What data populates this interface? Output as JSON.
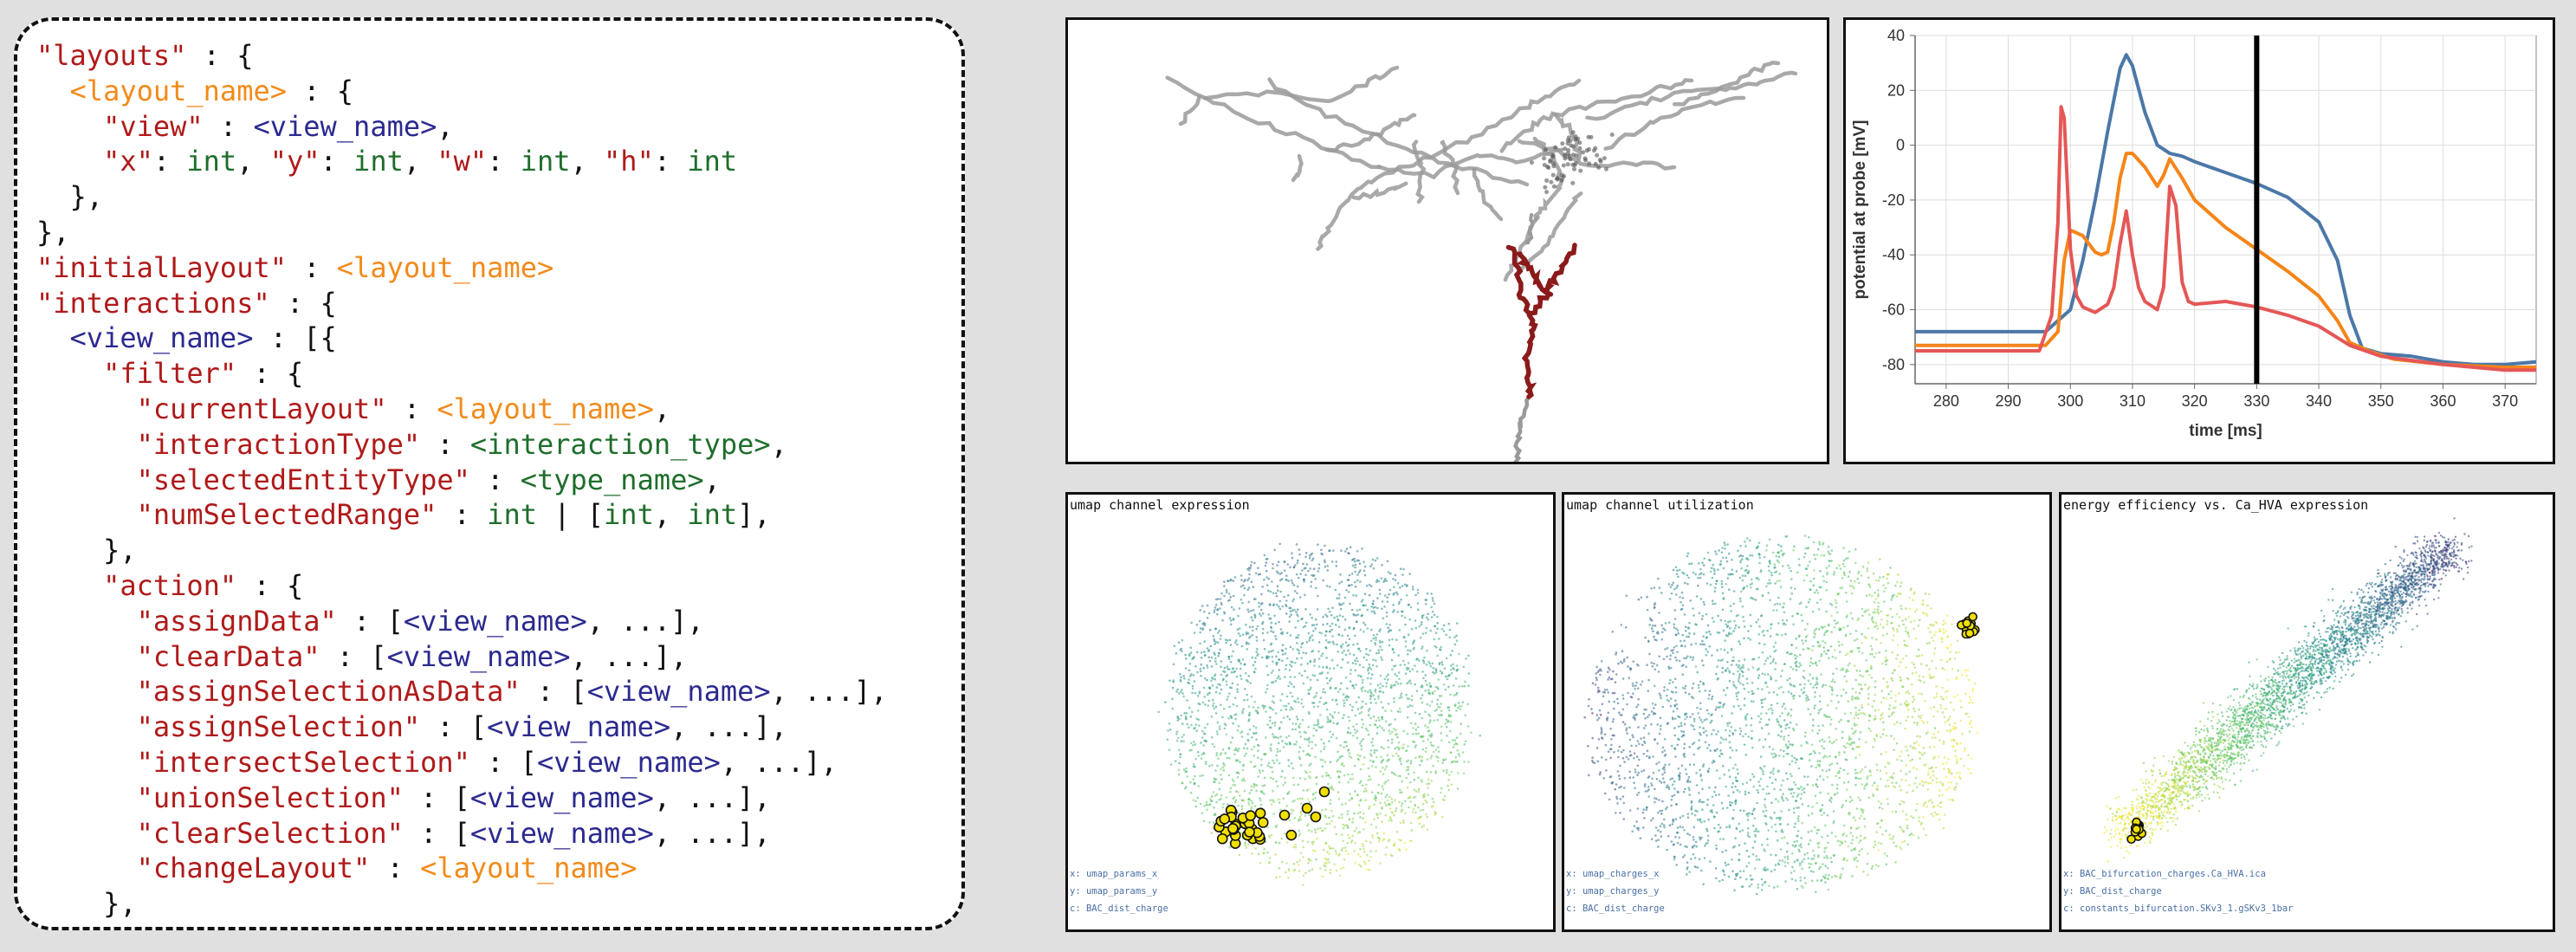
{
  "code_panel": {
    "lines": [
      [
        [
          "tok-key",
          "\"layouts\""
        ],
        [
          "tok-punct",
          " : {"
        ]
      ],
      [
        [
          "tok-punct",
          "  "
        ],
        [
          "tok-layout",
          "<layout_name>"
        ],
        [
          "tok-punct",
          " : {"
        ]
      ],
      [
        [
          "tok-punct",
          "    "
        ],
        [
          "tok-key",
          "\"view\""
        ],
        [
          "tok-punct",
          " : "
        ],
        [
          "tok-view",
          "<view_name>"
        ],
        [
          "tok-punct",
          ","
        ]
      ],
      [
        [
          "tok-punct",
          "    "
        ],
        [
          "tok-key",
          "\"x\""
        ],
        [
          "tok-punct",
          ": "
        ],
        [
          "tok-type",
          "int"
        ],
        [
          "tok-punct",
          ", "
        ],
        [
          "tok-key",
          "\"y\""
        ],
        [
          "tok-punct",
          ": "
        ],
        [
          "tok-type",
          "int"
        ],
        [
          "tok-punct",
          ", "
        ],
        [
          "tok-key",
          "\"w\""
        ],
        [
          "tok-punct",
          ": "
        ],
        [
          "tok-type",
          "int"
        ],
        [
          "tok-punct",
          ", "
        ],
        [
          "tok-key",
          "\"h\""
        ],
        [
          "tok-punct",
          ": "
        ],
        [
          "tok-type",
          "int"
        ]
      ],
      [
        [
          "tok-punct",
          "  },"
        ]
      ],
      [
        [
          "tok-punct",
          "},"
        ]
      ],
      [
        [
          "tok-key",
          "\"initialLayout\""
        ],
        [
          "tok-punct",
          " : "
        ],
        [
          "tok-layout",
          "<layout_name>"
        ]
      ],
      [
        [
          "tok-key",
          "\"interactions\""
        ],
        [
          "tok-punct",
          " : {"
        ]
      ],
      [
        [
          "tok-punct",
          "  "
        ],
        [
          "tok-view",
          "<view_name>"
        ],
        [
          "tok-punct",
          " : [{"
        ]
      ],
      [
        [
          "tok-punct",
          "    "
        ],
        [
          "tok-key",
          "\"filter\""
        ],
        [
          "tok-punct",
          " : {"
        ]
      ],
      [
        [
          "tok-punct",
          "      "
        ],
        [
          "tok-key",
          "\"currentLayout\""
        ],
        [
          "tok-punct",
          " : "
        ],
        [
          "tok-layout",
          "<layout_name>"
        ],
        [
          "tok-punct",
          ","
        ]
      ],
      [
        [
          "tok-punct",
          "      "
        ],
        [
          "tok-key",
          "\"interactionType\""
        ],
        [
          "tok-punct",
          " : "
        ],
        [
          "tok-type",
          "<interaction_type>"
        ],
        [
          "tok-punct",
          ","
        ]
      ],
      [
        [
          "tok-punct",
          "      "
        ],
        [
          "tok-key",
          "\"selectedEntityType\""
        ],
        [
          "tok-punct",
          " : "
        ],
        [
          "tok-type",
          "<type_name>"
        ],
        [
          "tok-punct",
          ","
        ]
      ],
      [
        [
          "tok-punct",
          "      "
        ],
        [
          "tok-key",
          "\"numSelectedRange\""
        ],
        [
          "tok-punct",
          " : "
        ],
        [
          "tok-type",
          "int"
        ],
        [
          "tok-punct",
          " | ["
        ],
        [
          "tok-type",
          "int"
        ],
        [
          "tok-punct",
          ", "
        ],
        [
          "tok-type",
          "int"
        ],
        [
          "tok-punct",
          "],"
        ]
      ],
      [
        [
          "tok-punct",
          "    },"
        ]
      ],
      [
        [
          "tok-punct",
          "    "
        ],
        [
          "tok-key",
          "\"action\""
        ],
        [
          "tok-punct",
          " : {"
        ]
      ],
      [
        [
          "tok-punct",
          "      "
        ],
        [
          "tok-key",
          "\"assignData\""
        ],
        [
          "tok-punct",
          " : ["
        ],
        [
          "tok-view",
          "<view_name>"
        ],
        [
          "tok-punct",
          ", ...],"
        ]
      ],
      [
        [
          "tok-punct",
          "      "
        ],
        [
          "tok-key",
          "\"clearData\""
        ],
        [
          "tok-punct",
          " : ["
        ],
        [
          "tok-view",
          "<view_name>"
        ],
        [
          "tok-punct",
          ", ...],"
        ]
      ],
      [
        [
          "tok-punct",
          "      "
        ],
        [
          "tok-key",
          "\"assignSelectionAsData\""
        ],
        [
          "tok-punct",
          " : ["
        ],
        [
          "tok-view",
          "<view_name>"
        ],
        [
          "tok-punct",
          ", ...],"
        ]
      ],
      [
        [
          "tok-punct",
          "      "
        ],
        [
          "tok-key",
          "\"assignSelection\""
        ],
        [
          "tok-punct",
          " : ["
        ],
        [
          "tok-view",
          "<view_name>"
        ],
        [
          "tok-punct",
          ", ...],"
        ]
      ],
      [
        [
          "tok-punct",
          "      "
        ],
        [
          "tok-key",
          "\"intersectSelection\""
        ],
        [
          "tok-punct",
          " : ["
        ],
        [
          "tok-view",
          "<view_name>"
        ],
        [
          "tok-punct",
          ", ...],"
        ]
      ],
      [
        [
          "tok-punct",
          "      "
        ],
        [
          "tok-key",
          "\"unionSelection\""
        ],
        [
          "tok-punct",
          " : ["
        ],
        [
          "tok-view",
          "<view_name>"
        ],
        [
          "tok-punct",
          ", ...],"
        ]
      ],
      [
        [
          "tok-punct",
          "      "
        ],
        [
          "tok-key",
          "\"clearSelection\""
        ],
        [
          "tok-punct",
          " : ["
        ],
        [
          "tok-view",
          "<view_name>"
        ],
        [
          "tok-punct",
          ", ...],"
        ]
      ],
      [
        [
          "tok-punct",
          "      "
        ],
        [
          "tok-key",
          "\"changeLayout\""
        ],
        [
          "tok-punct",
          " : "
        ],
        [
          "tok-layout",
          "<layout_name>"
        ]
      ],
      [
        [
          "tok-punct",
          "    },"
        ]
      ]
    ]
  },
  "trace_chart": {
    "chart_data": {
      "type": "line",
      "xlabel": "time [ms]",
      "ylabel": "potential at probe [mV]",
      "xlim": [
        275,
        375
      ],
      "ylim": [
        -87,
        40
      ],
      "xticks": [
        280,
        290,
        300,
        310,
        320,
        330,
        340,
        350,
        360,
        370
      ],
      "yticks": [
        40,
        20,
        0,
        -20,
        -40,
        -60,
        -80
      ],
      "grid": true,
      "marker_x": 330,
      "series": [
        {
          "color": "#4c78a8",
          "points": [
            [
              275,
              -68
            ],
            [
              296,
              -68
            ],
            [
              300,
              -60
            ],
            [
              302,
              -42
            ],
            [
              304,
              -20
            ],
            [
              306,
              5
            ],
            [
              308,
              28
            ],
            [
              309,
              33
            ],
            [
              310,
              29
            ],
            [
              312,
              12
            ],
            [
              314,
              0
            ],
            [
              316,
              -3
            ],
            [
              318,
              -4
            ],
            [
              320,
              -6
            ],
            [
              325,
              -10
            ],
            [
              330,
              -14
            ],
            [
              335,
              -19
            ],
            [
              340,
              -28
            ],
            [
              343,
              -42
            ],
            [
              345,
              -62
            ],
            [
              347,
              -74
            ],
            [
              350,
              -76
            ],
            [
              355,
              -77
            ],
            [
              360,
              -79
            ],
            [
              365,
              -80
            ],
            [
              370,
              -80
            ],
            [
              375,
              -79
            ]
          ]
        },
        {
          "color": "#f58518",
          "points": [
            [
              275,
              -73
            ],
            [
              296,
              -73
            ],
            [
              298,
              -68
            ],
            [
              299,
              -42
            ],
            [
              300,
              -31
            ],
            [
              302,
              -33
            ],
            [
              304,
              -39
            ],
            [
              305,
              -40
            ],
            [
              306,
              -39
            ],
            [
              307,
              -28
            ],
            [
              308,
              -12
            ],
            [
              309,
              -3
            ],
            [
              310,
              -3
            ],
            [
              312,
              -8
            ],
            [
              314,
              -15
            ],
            [
              315,
              -11
            ],
            [
              316,
              -5
            ],
            [
              318,
              -12
            ],
            [
              320,
              -20
            ],
            [
              325,
              -30
            ],
            [
              330,
              -38
            ],
            [
              335,
              -46
            ],
            [
              340,
              -55
            ],
            [
              343,
              -64
            ],
            [
              345,
              -72
            ],
            [
              348,
              -75
            ],
            [
              352,
              -78
            ],
            [
              360,
              -80
            ],
            [
              370,
              -81
            ],
            [
              375,
              -81
            ]
          ]
        },
        {
          "color": "#e45756",
          "points": [
            [
              275,
              -75
            ],
            [
              295,
              -75
            ],
            [
              297,
              -62
            ],
            [
              298,
              -28
            ],
            [
              298.5,
              14
            ],
            [
              299,
              10
            ],
            [
              300,
              -38
            ],
            [
              301,
              -55
            ],
            [
              302,
              -59
            ],
            [
              304,
              -61
            ],
            [
              306,
              -58
            ],
            [
              307,
              -52
            ],
            [
              308,
              -36
            ],
            [
              309,
              -24
            ],
            [
              310,
              -40
            ],
            [
              311,
              -52
            ],
            [
              312,
              -57
            ],
            [
              314,
              -60
            ],
            [
              315,
              -52
            ],
            [
              316,
              -15
            ],
            [
              317,
              -22
            ],
            [
              318,
              -50
            ],
            [
              319,
              -57
            ],
            [
              320,
              -58
            ],
            [
              325,
              -57
            ],
            [
              330,
              -59
            ],
            [
              335,
              -62
            ],
            [
              340,
              -66
            ],
            [
              345,
              -73
            ],
            [
              350,
              -77
            ],
            [
              360,
              -80
            ],
            [
              370,
              -82
            ],
            [
              375,
              -82
            ]
          ]
        }
      ]
    }
  },
  "umap_expr": {
    "title": "umap channel expression",
    "enc_x": "x: umap_params_x",
    "enc_y": "y: umap_params_y",
    "enc_c": "c: BAC_dist_charge"
  },
  "umap_util": {
    "title": "umap channel utilization",
    "enc_x": "x: umap_charges_x",
    "enc_y": "y: umap_charges_y",
    "enc_c": "c: BAC_dist_charge"
  },
  "energy": {
    "title": "energy efficiency vs. Ca_HVA expression",
    "enc_x": "x: BAC_bifurcation_charges.Ca_HVA.ica",
    "enc_y": "y: BAC_dist_charge",
    "enc_c": "c: constants_bifurcation.SKv3_1.gSKv3_1bar"
  },
  "colors": {
    "selection_fill": "#f0e000",
    "selection_stroke": "#111111",
    "morph_gray": "#9a9a9a",
    "morph_red": "#8b1a1a",
    "marker": "#000000"
  }
}
